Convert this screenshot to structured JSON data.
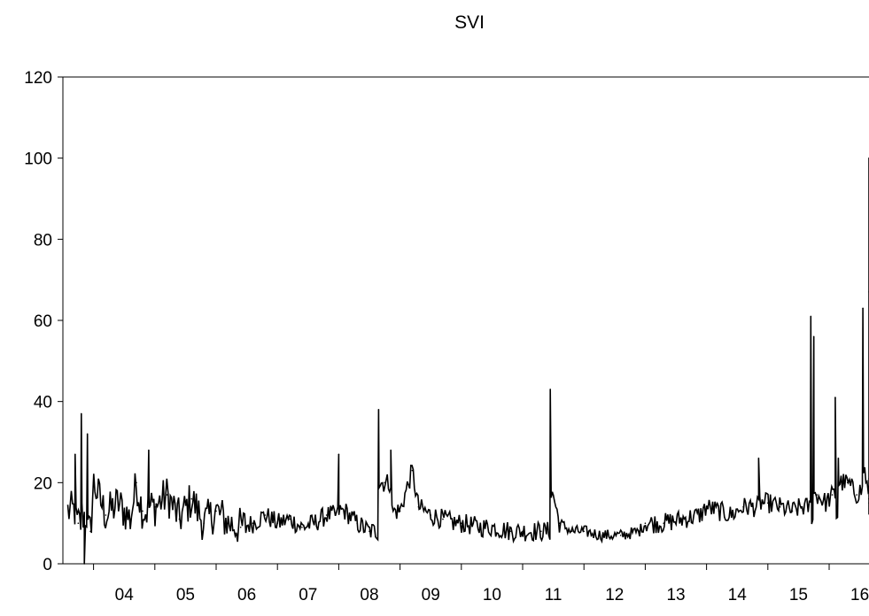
{
  "chart_data": {
    "type": "line",
    "title": "SVI",
    "xlabel": "",
    "ylabel": "",
    "ylim": [
      0,
      120
    ],
    "yticks": [
      0,
      20,
      40,
      60,
      80,
      100,
      120
    ],
    "x_tick_labels": [
      "04",
      "05",
      "06",
      "07",
      "08",
      "09",
      "10",
      "11",
      "12",
      "13",
      "14",
      "15",
      "16"
    ],
    "xlim_years": [
      2003.5,
      2016.65
    ],
    "grid": false,
    "legend": "none",
    "color": "#000000",
    "series": [
      {
        "values": [
          {
            "x": 2003.6,
            "y": 13
          },
          {
            "x": 2003.7,
            "y": 27
          },
          {
            "x": 2003.75,
            "y": 10
          },
          {
            "x": 2003.8,
            "y": 37
          },
          {
            "x": 2003.85,
            "y": 0
          },
          {
            "x": 2003.9,
            "y": 32
          },
          {
            "x": 2003.95,
            "y": 8
          },
          {
            "x": 2004.0,
            "y": 20
          },
          {
            "x": 2004.2,
            "y": 12
          },
          {
            "x": 2004.4,
            "y": 15
          },
          {
            "x": 2004.6,
            "y": 11
          },
          {
            "x": 2004.7,
            "y": 20
          },
          {
            "x": 2004.8,
            "y": 13
          },
          {
            "x": 2004.9,
            "y": 28
          },
          {
            "x": 2005.0,
            "y": 14
          },
          {
            "x": 2005.2,
            "y": 17
          },
          {
            "x": 2005.4,
            "y": 11
          },
          {
            "x": 2005.6,
            "y": 16
          },
          {
            "x": 2005.8,
            "y": 10
          },
          {
            "x": 2006.0,
            "y": 13
          },
          {
            "x": 2006.2,
            "y": 10
          },
          {
            "x": 2006.4,
            "y": 9
          },
          {
            "x": 2006.6,
            "y": 10
          },
          {
            "x": 2006.8,
            "y": 12
          },
          {
            "x": 2007.0,
            "y": 10
          },
          {
            "x": 2007.2,
            "y": 11
          },
          {
            "x": 2007.4,
            "y": 9
          },
          {
            "x": 2007.6,
            "y": 10
          },
          {
            "x": 2007.8,
            "y": 12
          },
          {
            "x": 2008.0,
            "y": 27
          },
          {
            "x": 2008.1,
            "y": 13
          },
          {
            "x": 2008.3,
            "y": 10
          },
          {
            "x": 2008.5,
            "y": 8
          },
          {
            "x": 2008.65,
            "y": 38
          },
          {
            "x": 2008.75,
            "y": 20
          },
          {
            "x": 2008.85,
            "y": 28
          },
          {
            "x": 2009.0,
            "y": 13
          },
          {
            "x": 2009.2,
            "y": 23
          },
          {
            "x": 2009.3,
            "y": 14
          },
          {
            "x": 2009.5,
            "y": 12
          },
          {
            "x": 2009.7,
            "y": 11
          },
          {
            "x": 2009.9,
            "y": 10
          },
          {
            "x": 2010.0,
            "y": 10
          },
          {
            "x": 2010.3,
            "y": 9
          },
          {
            "x": 2010.5,
            "y": 9
          },
          {
            "x": 2010.8,
            "y": 8
          },
          {
            "x": 2011.0,
            "y": 8
          },
          {
            "x": 2011.3,
            "y": 8
          },
          {
            "x": 2011.45,
            "y": 43
          },
          {
            "x": 2011.5,
            "y": 17
          },
          {
            "x": 2011.6,
            "y": 10
          },
          {
            "x": 2011.8,
            "y": 8
          },
          {
            "x": 2012.0,
            "y": 8
          },
          {
            "x": 2012.3,
            "y": 7
          },
          {
            "x": 2012.6,
            "y": 7
          },
          {
            "x": 2012.9,
            "y": 8
          },
          {
            "x": 2013.0,
            "y": 10
          },
          {
            "x": 2013.3,
            "y": 10
          },
          {
            "x": 2013.6,
            "y": 11
          },
          {
            "x": 2013.9,
            "y": 12
          },
          {
            "x": 2014.0,
            "y": 14
          },
          {
            "x": 2014.2,
            "y": 13
          },
          {
            "x": 2014.4,
            "y": 12
          },
          {
            "x": 2014.6,
            "y": 14
          },
          {
            "x": 2014.85,
            "y": 26
          },
          {
            "x": 2015.0,
            "y": 15
          },
          {
            "x": 2015.2,
            "y": 14
          },
          {
            "x": 2015.4,
            "y": 13
          },
          {
            "x": 2015.55,
            "y": 14
          },
          {
            "x": 2015.7,
            "y": 61
          },
          {
            "x": 2015.75,
            "y": 56
          },
          {
            "x": 2015.8,
            "y": 17
          },
          {
            "x": 2015.95,
            "y": 15
          },
          {
            "x": 2016.05,
            "y": 17
          },
          {
            "x": 2016.1,
            "y": 41
          },
          {
            "x": 2016.15,
            "y": 26
          },
          {
            "x": 2016.3,
            "y": 20
          },
          {
            "x": 2016.45,
            "y": 17
          },
          {
            "x": 2016.5,
            "y": 18
          },
          {
            "x": 2016.55,
            "y": 63
          },
          {
            "x": 2016.58,
            "y": 23
          },
          {
            "x": 2016.65,
            "y": 16
          },
          {
            "x": 2016.72,
            "y": 15
          },
          {
            "x": 2016.78,
            "y": 21
          },
          {
            "x": 2016.85,
            "y": 16
          },
          {
            "x": 2016.9,
            "y": 100
          },
          {
            "x": 2016.93,
            "y": 67
          }
        ]
      }
    ]
  }
}
